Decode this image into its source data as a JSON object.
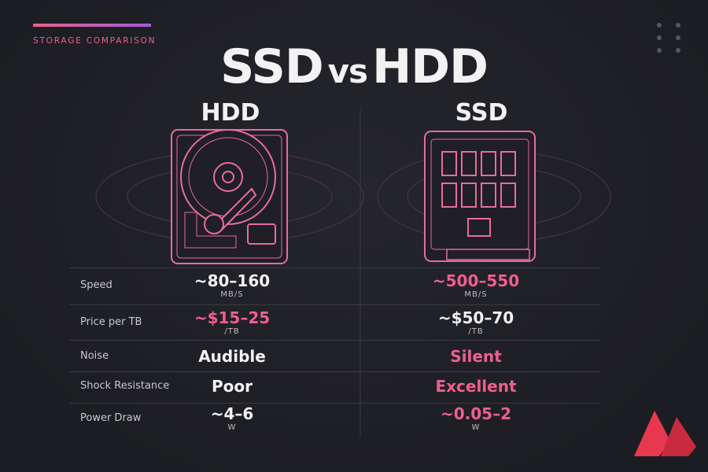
{
  "header": {
    "eyebrow": "STORAGE COMPARISON",
    "title": {
      "left": "SSD",
      "middle": "vs",
      "right": "HDD"
    }
  },
  "columns": [
    "HDD",
    "SSD"
  ],
  "table": {
    "rows": [
      {
        "label": "Speed",
        "cells": [
          {
            "value": "~80–160",
            "unit": "MB/S"
          },
          {
            "value": "~500–550",
            "unit": "MB/S"
          }
        ],
        "highlight": 1
      },
      {
        "label": "Price per TB",
        "cells": [
          {
            "value": "~$15–25",
            "unit": "/TB"
          },
          {
            "value": "~$50–70",
            "unit": "/TB"
          }
        ],
        "highlight": 0
      },
      {
        "label": "Noise",
        "cells": [
          {
            "value": "Audible"
          },
          {
            "value": "Silent"
          }
        ],
        "highlight": 1
      },
      {
        "label": "Shock Resistance",
        "cells": [
          {
            "value": "Poor"
          },
          {
            "value": "Excellent"
          }
        ],
        "highlight": 1
      },
      {
        "label": "Power Draw",
        "cells": [
          {
            "value": "~4–6",
            "unit": "W"
          },
          {
            "value": "~0.05–2",
            "unit": "W"
          }
        ],
        "highlight": 1
      }
    ]
  }
}
